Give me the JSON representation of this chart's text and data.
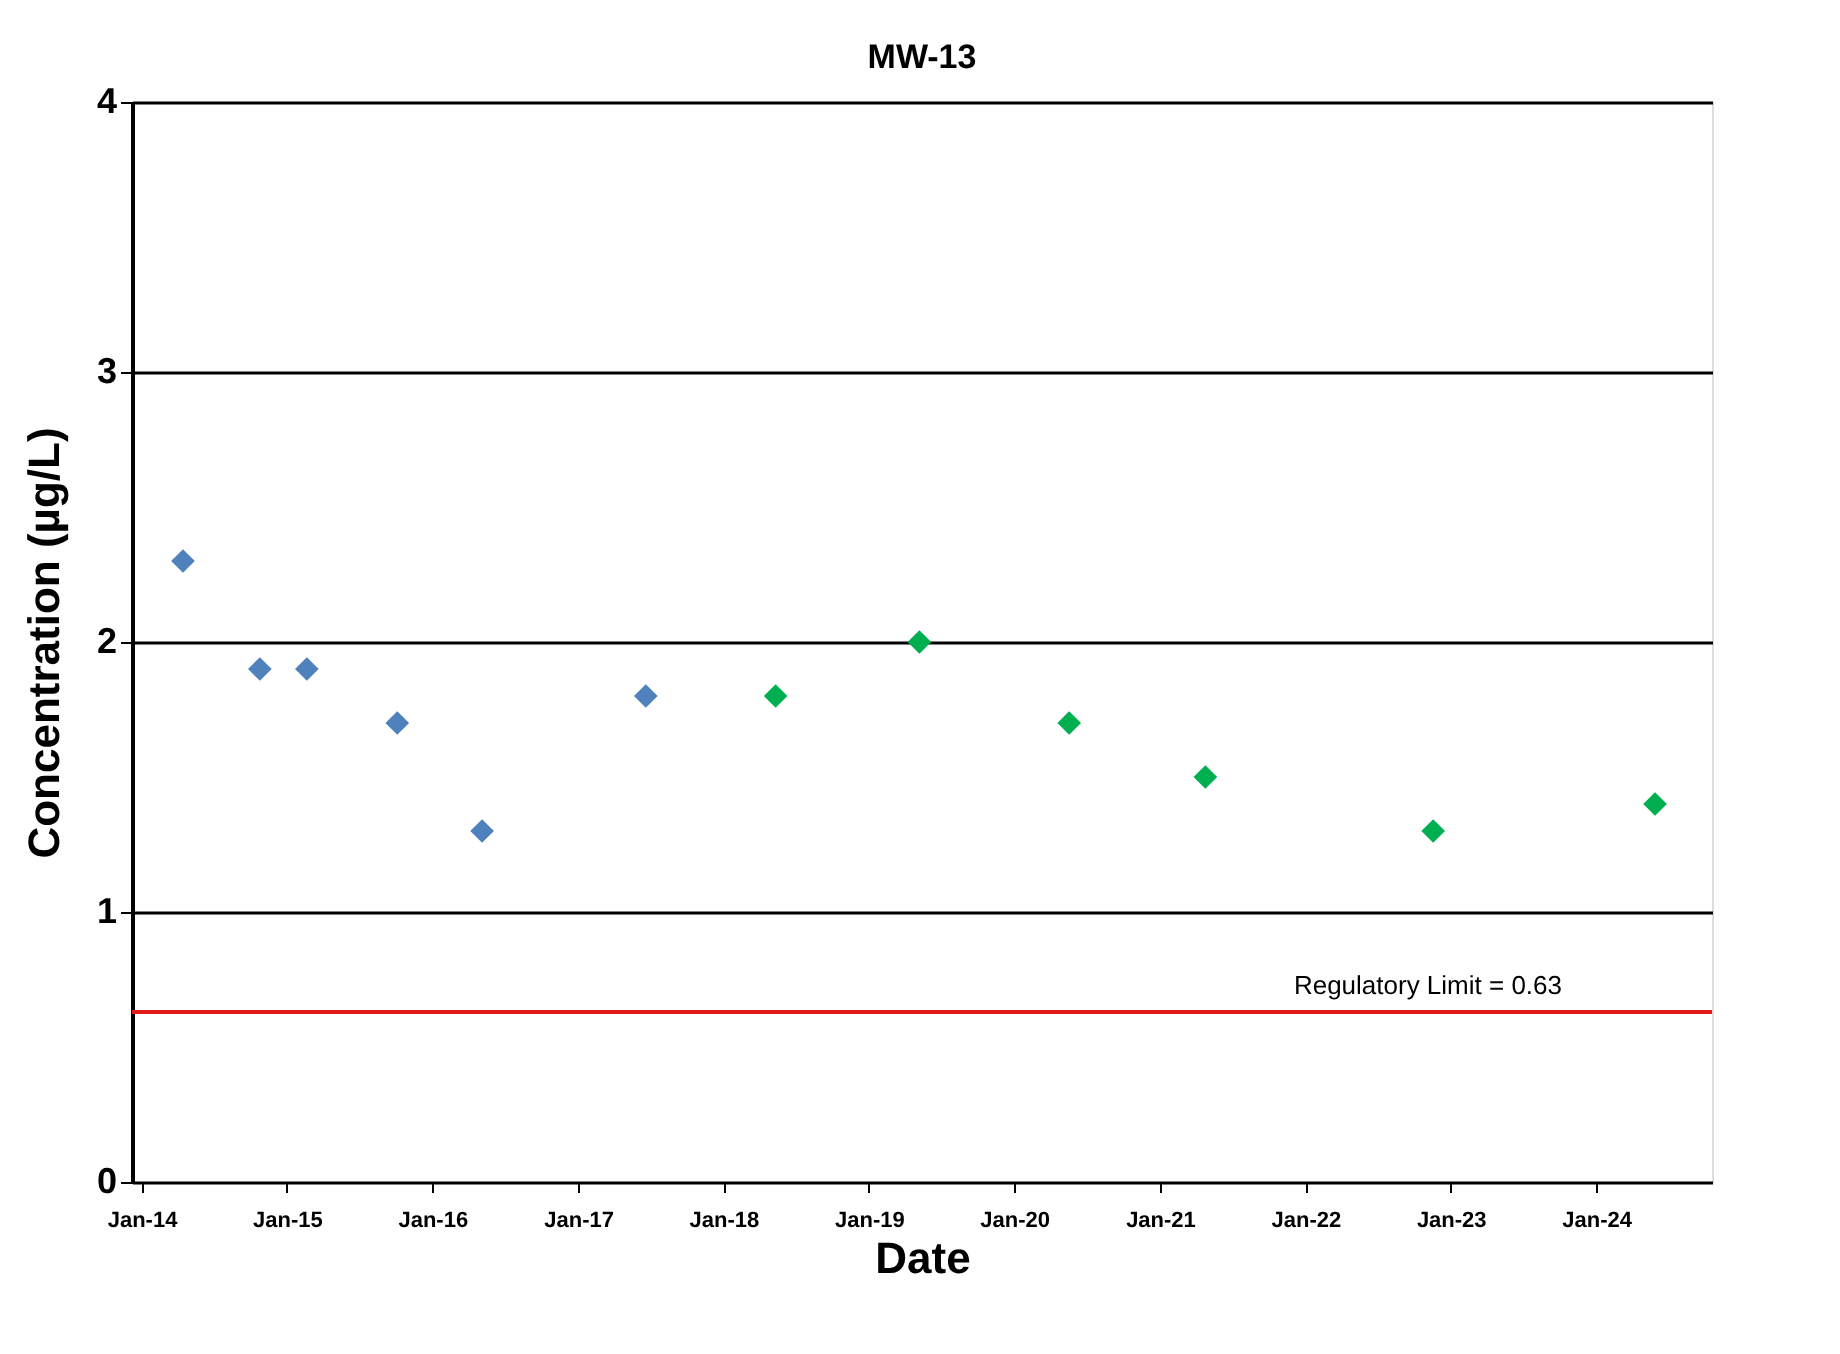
{
  "chart_data": {
    "type": "scatter",
    "title": "MW-13",
    "xlabel": "Date",
    "ylabel": "Concentration (µg/L)",
    "series": [
      {
        "color": "#4f81bd",
        "x": [
          "2014-04-15",
          "2014-10-25",
          "2015-02-20",
          "2015-10-05",
          "2016-05-05",
          "2017-06-20"
        ],
        "values": [
          2.3,
          1.9,
          1.9,
          1.7,
          1.3,
          1.8
        ]
      },
      {
        "color": "#00b050",
        "x": [
          "2018-05-12",
          "2019-05-08",
          "2020-05-18",
          "2021-04-25",
          "2022-11-18",
          "2024-05-28"
        ],
        "values": [
          1.8,
          2.0,
          1.7,
          1.5,
          1.3,
          1.4
        ]
      }
    ],
    "marker": "diamond",
    "xlim": [
      "2013-12-08",
      "2024-10-18"
    ],
    "xticks": [
      {
        "value": "2014-01-01",
        "label": "Jan-14"
      },
      {
        "value": "2015-01-01",
        "label": "Jan-15"
      },
      {
        "value": "2016-01-01",
        "label": "Jan-16"
      },
      {
        "value": "2017-01-01",
        "label": "Jan-17"
      },
      {
        "value": "2018-01-01",
        "label": "Jan-18"
      },
      {
        "value": "2019-01-01",
        "label": "Jan-19"
      },
      {
        "value": "2020-01-01",
        "label": "Jan-20"
      },
      {
        "value": "2021-01-01",
        "label": "Jan-21"
      },
      {
        "value": "2022-01-01",
        "label": "Jan-22"
      },
      {
        "value": "2023-01-01",
        "label": "Jan-23"
      },
      {
        "value": "2024-01-01",
        "label": "Jan-24"
      }
    ],
    "ylim": [
      0,
      4
    ],
    "yticks": [
      0,
      1,
      2,
      3,
      4
    ],
    "grid": "y",
    "ref_lines": [
      {
        "axis": "y",
        "value": 0.63,
        "label": "Regulatory Limit = 0.63",
        "color": "#e31a1c"
      }
    ]
  }
}
